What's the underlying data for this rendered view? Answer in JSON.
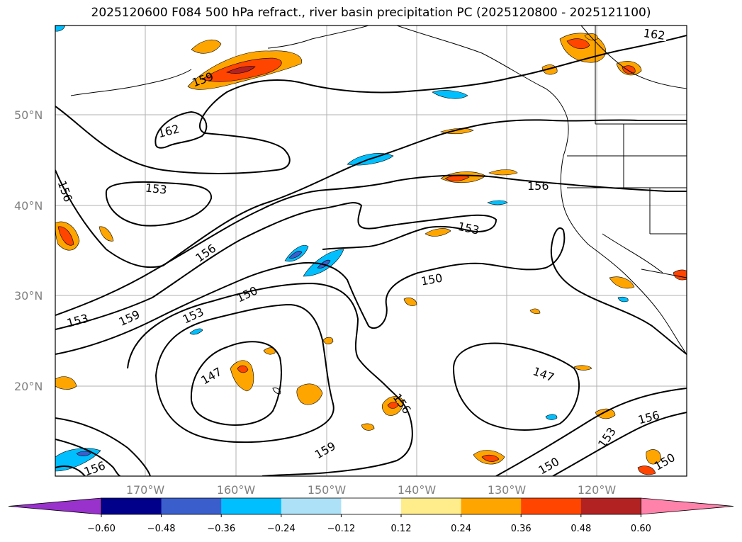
{
  "title": "2025120600 F084 500 hPa refract., river basin precipitation PC (2025120800 - 2025121100)",
  "lat_labels": [
    "50°N",
    "40°N",
    "30°N",
    "20°N"
  ],
  "lon_labels": [
    "170°W",
    "160°W",
    "150°W",
    "140°W",
    "130°W",
    "120°W"
  ],
  "contour_labels": [
    "162",
    "159",
    "162",
    "156",
    "153",
    "156",
    "153",
    "156",
    "150",
    "153",
    "159",
    "150",
    "153",
    "147",
    "156",
    "159",
    "147",
    "156",
    "153",
    "150",
    "150",
    "156"
  ],
  "colorbar": {
    "ticks": [
      "−0.60",
      "−0.48",
      "−0.36",
      "−0.24",
      "−0.12",
      "0.12",
      "0.24",
      "0.36",
      "0.48",
      "0.60"
    ],
    "colors": [
      "#9932CC",
      "#00008B",
      "#3A5FCD",
      "#00BFFF",
      "#ADE1F7",
      "#FFFFFF",
      "#FFEC8B",
      "#FFA500",
      "#FF4500",
      "#B22222",
      "#FF82AB"
    ]
  },
  "colors": {
    "orange": "#FFA500",
    "red_orange": "#FF4500",
    "dark_red": "#B22222",
    "light_blue": "#00BFFF",
    "blue": "#3A5FCD",
    "grid": "#B0B0B0"
  }
}
